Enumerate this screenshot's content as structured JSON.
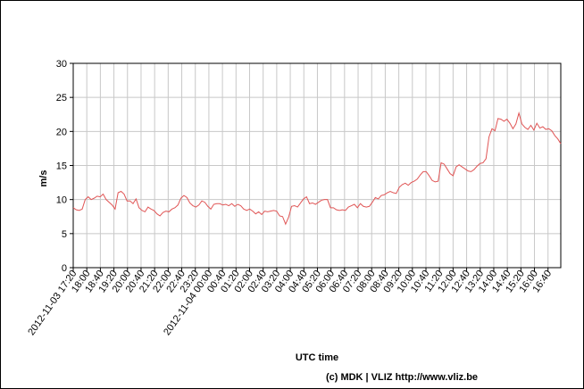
{
  "chart_data": {
    "type": "line",
    "xlabel": "UTC time",
    "ylabel": "m/s",
    "ylim": [
      0,
      30
    ],
    "yticks": [
      0,
      5,
      10,
      15,
      20,
      25,
      30
    ],
    "grid": true,
    "line_color": "#e05555",
    "x_tick_labels": [
      "2012-11-03 17:20",
      "18:00",
      "18:40",
      "19:20",
      "20:00",
      "20:40",
      "21:20",
      "22:00",
      "22:40",
      "23:20",
      "2012-11-04 00:00",
      "00:40",
      "01:20",
      "02:00",
      "02:40",
      "03:20",
      "04:00",
      "04:40",
      "05:20",
      "06:00",
      "06:40",
      "07:20",
      "08:00",
      "08:40",
      "09:20",
      "10:00",
      "10:40",
      "11:20",
      "12:00",
      "12:40",
      "13:20",
      "14:00",
      "14:40",
      "15:20",
      "16:00",
      "16:40"
    ],
    "series": [
      {
        "values": [
          8.8,
          8.5,
          8.4,
          8.6,
          10.0,
          10.4,
          10.0,
          10.2,
          10.5,
          10.4,
          10.8,
          10.0,
          9.6,
          9.2,
          8.6,
          11.0,
          11.2,
          10.8,
          9.8,
          9.8,
          9.4,
          10.1,
          8.8,
          8.4,
          8.2,
          8.9,
          8.6,
          8.4,
          7.9,
          7.6,
          8.1,
          8.3,
          8.2,
          8.6,
          8.8,
          9.2,
          10.2,
          10.6,
          10.3,
          9.5,
          9.1,
          8.9,
          9.2,
          9.8,
          9.6,
          9.0,
          8.6,
          9.3,
          9.4,
          9.4,
          9.2,
          9.3,
          9.1,
          9.4,
          9.0,
          9.3,
          9.1,
          8.6,
          8.4,
          8.6,
          8.3,
          7.9,
          8.2,
          7.8,
          8.3,
          8.2,
          8.3,
          8.4,
          8.3,
          7.6,
          7.5,
          6.4,
          7.4,
          9.0,
          9.1,
          8.9,
          9.5,
          10.1,
          10.4,
          9.4,
          9.5,
          9.3,
          9.6,
          9.9,
          10.0,
          10.0,
          8.8,
          8.8,
          8.5,
          8.4,
          8.5,
          8.4,
          8.9,
          9.1,
          9.3,
          8.8,
          9.4,
          9.0,
          8.9,
          9.0,
          9.6,
          10.3,
          10.1,
          10.6,
          10.7,
          11.0,
          11.2,
          11.0,
          10.9,
          11.8,
          12.2,
          12.4,
          12.1,
          12.5,
          12.7,
          13.0,
          13.6,
          14.1,
          14.1,
          13.5,
          12.8,
          12.6,
          12.7,
          15.4,
          15.2,
          14.5,
          13.8,
          13.5,
          14.8,
          15.1,
          14.8,
          14.5,
          14.2,
          14.1,
          14.4,
          14.9,
          15.3,
          15.4,
          16.0,
          19.2,
          20.4,
          20.1,
          21.9,
          21.8,
          21.5,
          21.8,
          21.2,
          20.4,
          21.1,
          22.7,
          21.1,
          20.6,
          20.3,
          20.9,
          20.2,
          21.2,
          20.5,
          20.7,
          20.3,
          20.4,
          20.1,
          19.4,
          18.9,
          18.2
        ]
      }
    ]
  },
  "footer": {
    "credit": "(c) MDK | VLIZ http://www.vliz.be"
  }
}
